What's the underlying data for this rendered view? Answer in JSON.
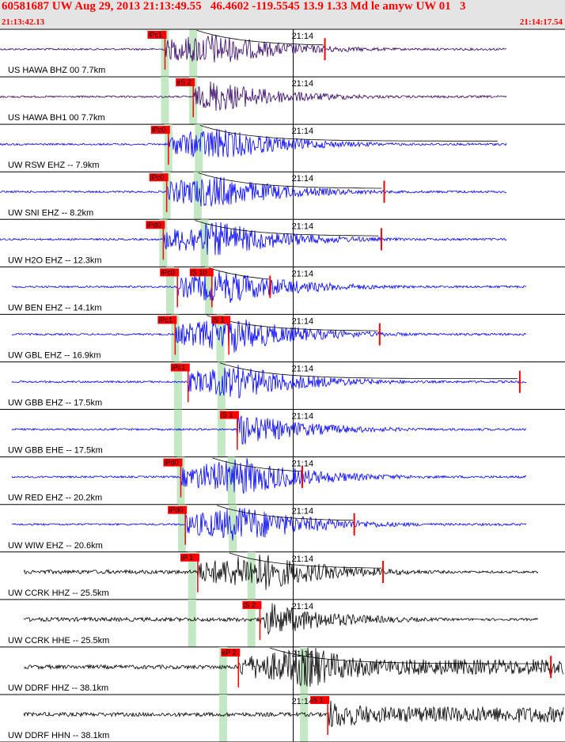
{
  "header": {
    "title": "60581687 UW Aug 29, 2013 21:13:49.55   46.4602 -119.5545 13.9 1.33 Md le amyw UW 01   3",
    "start_time": "21:13:42.13",
    "end_time": "21:14:17.54"
  },
  "colors": {
    "pick_box": "#ff0000",
    "theoretical_band": "#c4e8c4",
    "short_period": "#0000ff",
    "broadband_z": "#330066",
    "broadband_h": "#330066",
    "accelerometer": "#000000",
    "coda_curve": "#000000",
    "separator": "#000000"
  },
  "chart_data": {
    "type": "seismogram",
    "time_axis": {
      "start": "21:13:42.13",
      "end": "21:14:17.54",
      "minute_tick_label": "21:14"
    },
    "channels": [
      {
        "label": "US HAWA BHZ 00 7.7km",
        "color_key": "broadband_z",
        "picks": [
          {
            "label": "iPc1",
            "time_frac": 0.292
          }
        ],
        "p_band": 0.292,
        "s_band": 0.342,
        "coda": true,
        "duration_end": 0.575
      },
      {
        "label": "US HAWA BH1 00 7.7km",
        "color_key": "broadband_h",
        "picks": [
          {
            "label": "eS 2",
            "time_frac": 0.342
          }
        ],
        "p_band": 0.292,
        "s_band": 0.342,
        "coda": false,
        "duration_end": null
      },
      {
        "label": "UW RSW EHZ -- 7.9km",
        "color_key": "short_period",
        "picks": [
          {
            "label": "iPc0",
            "time_frac": 0.298
          }
        ],
        "p_band": 0.298,
        "s_band": 0.352,
        "coda": true,
        "duration_end": null
      },
      {
        "label": "UW SNI EHZ -- 8.2km",
        "color_key": "short_period",
        "picks": [
          {
            "label": "iPc0",
            "time_frac": 0.295
          }
        ],
        "p_band": 0.295,
        "s_band": 0.35,
        "coda": true,
        "duration_end": 0.68
      },
      {
        "label": "UW H2O EHZ -- 12.3km",
        "color_key": "short_period",
        "picks": [
          {
            "label": "iPd0",
            "time_frac": 0.289
          }
        ],
        "p_band": 0.289,
        "s_band": 0.362,
        "coda": true,
        "duration_end": 0.675
      },
      {
        "label": "UW BEN EHZ -- 14.1km",
        "color_key": "short_period",
        "picks": [
          {
            "label": "iPc0",
            "time_frac": 0.314
          },
          {
            "label": "iS 10",
            "time_frac": 0.375
          }
        ],
        "p_band": 0.301,
        "s_band": 0.37,
        "coda": true,
        "duration_end": 0.478
      },
      {
        "label": "UW GBL EHZ -- 16.9km",
        "color_key": "short_period",
        "picks": [
          {
            "label": "iPc1",
            "time_frac": 0.31
          },
          {
            "label": "iS 1",
            "time_frac": 0.405
          }
        ],
        "p_band": 0.31,
        "s_band": 0.39,
        "coda": true,
        "duration_end": 0.672
      },
      {
        "label": "UW GBB EHZ -- 17.5km",
        "color_key": "short_period",
        "picks": [
          {
            "label": "iPc1",
            "time_frac": 0.333
          }
        ],
        "p_band": 0.315,
        "s_band": 0.392,
        "coda": true,
        "duration_end": 0.92
      },
      {
        "label": "UW GBB EHE -- 17.5km",
        "color_key": "short_period",
        "picks": [
          {
            "label": "iS 1",
            "time_frac": 0.42
          }
        ],
        "p_band": 0.315,
        "s_band": 0.392,
        "coda": false,
        "duration_end": null
      },
      {
        "label": "UW RED EHZ -- 20.2km",
        "color_key": "short_period",
        "picks": [
          {
            "label": "iPd0",
            "time_frac": 0.32
          }
        ],
        "p_band": 0.32,
        "s_band": 0.41,
        "coda": true,
        "duration_end": 0.535
      },
      {
        "label": "UW WIW EHZ -- 20.6km",
        "color_key": "short_period",
        "picks": [
          {
            "label": "iPd0",
            "time_frac": 0.328
          }
        ],
        "p_band": 0.322,
        "s_band": 0.412,
        "coda": true,
        "duration_end": 0.627
      },
      {
        "label": "UW CCRK HHZ -- 25.5km",
        "color_key": "accelerometer",
        "picks": [
          {
            "label": "iP 1",
            "time_frac": 0.35
          }
        ],
        "p_band": 0.34,
        "s_band": 0.445,
        "coda": true,
        "duration_end": 0.678
      },
      {
        "label": "UW CCRK HHE -- 25.5km",
        "color_key": "accelerometer",
        "picks": [
          {
            "label": "iS 2",
            "time_frac": 0.46
          }
        ],
        "p_band": 0.34,
        "s_band": 0.445,
        "coda": false,
        "duration_end": null
      },
      {
        "label": "UW DDRF HHZ -- 38.1km",
        "color_key": "accelerometer",
        "picks": [
          {
            "label": "eP 2",
            "time_frac": 0.422
          }
        ],
        "p_band": 0.395,
        "s_band": 0.538,
        "coda": true,
        "duration_end": 0.975
      },
      {
        "label": "UW DDRF HHN -- 38.1km",
        "color_key": "accelerometer",
        "picks": [
          {
            "label": "iS 1",
            "time_frac": 0.58
          }
        ],
        "p_band": 0.395,
        "s_band": 0.538,
        "coda": false,
        "duration_end": null
      }
    ]
  }
}
